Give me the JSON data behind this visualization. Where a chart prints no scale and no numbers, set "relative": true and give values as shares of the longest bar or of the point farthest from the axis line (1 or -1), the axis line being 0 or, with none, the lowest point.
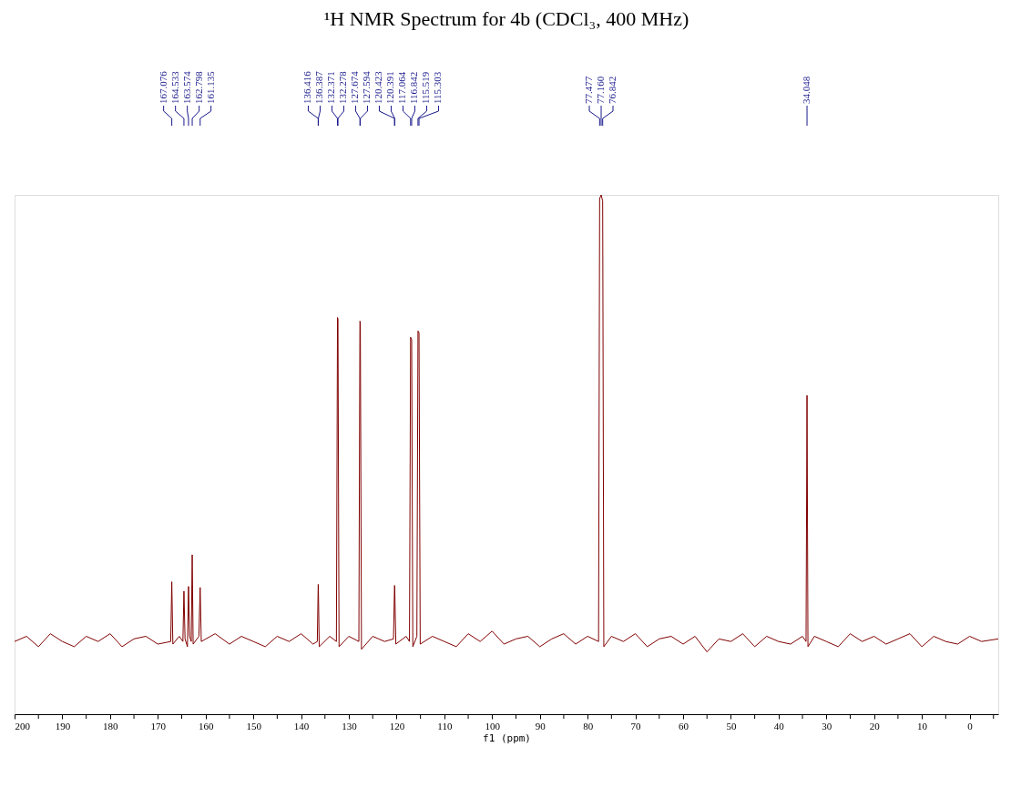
{
  "chart_data": {
    "type": "line",
    "relative": true,
    "title": "¹H NMR Spectrum for 4b (CDCl₃, 400 MHz)",
    "xlabel": "f1 (ppm)",
    "xlim": [
      200,
      -6
    ],
    "xticks": [
      200,
      {
        "value": 195,
        "label": null
      },
      190,
      {
        "value": 185,
        "label": null
      },
      180,
      {
        "value": 175,
        "label": null
      },
      170,
      {
        "value": 165,
        "label": null
      },
      160,
      {
        "value": 155,
        "label": null
      },
      150,
      {
        "value": 145,
        "label": null
      },
      140,
      {
        "value": 135,
        "label": null
      },
      130,
      {
        "value": 125,
        "label": null
      },
      120,
      {
        "value": 115,
        "label": null
      },
      110,
      {
        "value": 105,
        "label": null
      },
      100,
      {
        "value": 95,
        "label": null
      },
      90,
      {
        "value": 85,
        "label": null
      },
      80,
      {
        "value": 75,
        "label": null
      },
      70,
      {
        "value": 65,
        "label": null
      },
      60,
      {
        "value": 55,
        "label": null
      },
      50,
      {
        "value": 45,
        "label": null
      },
      40,
      {
        "value": 35,
        "label": null
      },
      30,
      {
        "value": 25,
        "label": null
      },
      20,
      {
        "value": 15,
        "label": null
      },
      10,
      {
        "value": 5,
        "label": null
      },
      0,
      {
        "value": -5,
        "label": null
      }
    ],
    "grid": false,
    "marker": "none",
    "line_style": "solid",
    "series": [
      {
        "color": "#800000",
        "x": [
          200,
          197.5,
          195,
          192.5,
          190,
          187.5,
          185,
          182.5,
          180,
          177.5,
          175,
          172.5,
          170,
          167.3,
          167.076,
          166.85,
          165.5,
          164.75,
          164.533,
          164.3,
          163.8,
          163.574,
          163.35,
          163.0,
          162.798,
          162.6,
          161.4,
          161.135,
          160.9,
          158,
          155,
          152.5,
          150,
          147.5,
          145,
          142.5,
          140,
          137.5,
          136.6,
          136.416,
          136.387,
          136.2,
          134,
          132.6,
          132.371,
          132.278,
          132.05,
          130,
          127.9,
          127.674,
          127.594,
          127.35,
          125,
          122.5,
          120.65,
          120.423,
          120.391,
          120.15,
          118,
          117.3,
          117.064,
          116.842,
          116.6,
          115.75,
          115.519,
          115.303,
          115.05,
          112.5,
          110,
          107.5,
          105,
          102.5,
          100,
          97.5,
          95,
          92.5,
          90,
          87.5,
          85,
          82.5,
          80,
          77.7,
          77.477,
          77.16,
          76.842,
          76.6,
          75,
          72.5,
          70,
          67.5,
          65,
          62.5,
          60,
          57.5,
          55,
          52.5,
          50,
          47.5,
          45,
          42.5,
          40,
          37.5,
          35,
          34.25,
          34.048,
          33.85,
          32.5,
          30,
          27.5,
          25,
          22.5,
          20,
          17.5,
          15,
          12.5,
          10,
          7.5,
          5,
          2.5,
          0,
          -2.5,
          -6
        ],
        "values": [
          0.14,
          0.15,
          0.13,
          0.155,
          0.14,
          0.13,
          0.15,
          0.14,
          0.155,
          0.13,
          0.145,
          0.15,
          0.135,
          0.14,
          0.255,
          0.135,
          0.15,
          0.14,
          0.237,
          0.145,
          0.13,
          0.246,
          0.15,
          0.14,
          0.307,
          0.135,
          0.15,
          0.244,
          0.14,
          0.155,
          0.135,
          0.15,
          0.14,
          0.13,
          0.15,
          0.14,
          0.155,
          0.135,
          0.14,
          0.25,
          0.248,
          0.13,
          0.15,
          0.14,
          0.764,
          0.761,
          0.13,
          0.15,
          0.14,
          0.757,
          0.754,
          0.125,
          0.15,
          0.14,
          0.145,
          0.248,
          0.246,
          0.135,
          0.15,
          0.14,
          0.726,
          0.721,
          0.13,
          0.15,
          0.738,
          0.735,
          0.135,
          0.15,
          0.14,
          0.13,
          0.155,
          0.14,
          0.16,
          0.135,
          0.145,
          0.15,
          0.13,
          0.145,
          0.155,
          0.135,
          0.15,
          0.14,
          0.993,
          1.0,
          0.988,
          0.13,
          0.15,
          0.14,
          0.155,
          0.13,
          0.145,
          0.15,
          0.135,
          0.15,
          0.12,
          0.145,
          0.14,
          0.155,
          0.13,
          0.15,
          0.14,
          0.135,
          0.15,
          0.14,
          0.614,
          0.13,
          0.15,
          0.14,
          0.13,
          0.155,
          0.14,
          0.15,
          0.135,
          0.145,
          0.155,
          0.13,
          0.15,
          0.14,
          0.135,
          0.15,
          0.14,
          0.145
        ]
      }
    ],
    "annotations": [
      {
        "text": "167.076",
        "x": 167.076
      },
      {
        "text": "164.533",
        "x": 164.533
      },
      {
        "text": "163.574",
        "x": 163.574
      },
      {
        "text": "162.798",
        "x": 162.798
      },
      {
        "text": "161.135",
        "x": 161.135
      },
      {
        "text": "136.416",
        "x": 136.416
      },
      {
        "text": "136.387",
        "x": 136.387
      },
      {
        "text": "132.371",
        "x": 132.371
      },
      {
        "text": "132.278",
        "x": 132.278
      },
      {
        "text": "127.674",
        "x": 127.674
      },
      {
        "text": "127.594",
        "x": 127.594
      },
      {
        "text": "120.423",
        "x": 120.423
      },
      {
        "text": "120.391",
        "x": 120.391
      },
      {
        "text": "117.064",
        "x": 117.064
      },
      {
        "text": "116.842",
        "x": 116.842
      },
      {
        "text": "115.519",
        "x": 115.519
      },
      {
        "text": "115.303",
        "x": 115.303
      },
      {
        "text": "77.477",
        "x": 77.477
      },
      {
        "text": "77.160",
        "x": 77.16
      },
      {
        "text": "76.842",
        "x": 76.842
      },
      {
        "text": "34.048",
        "x": 34.048
      }
    ]
  }
}
